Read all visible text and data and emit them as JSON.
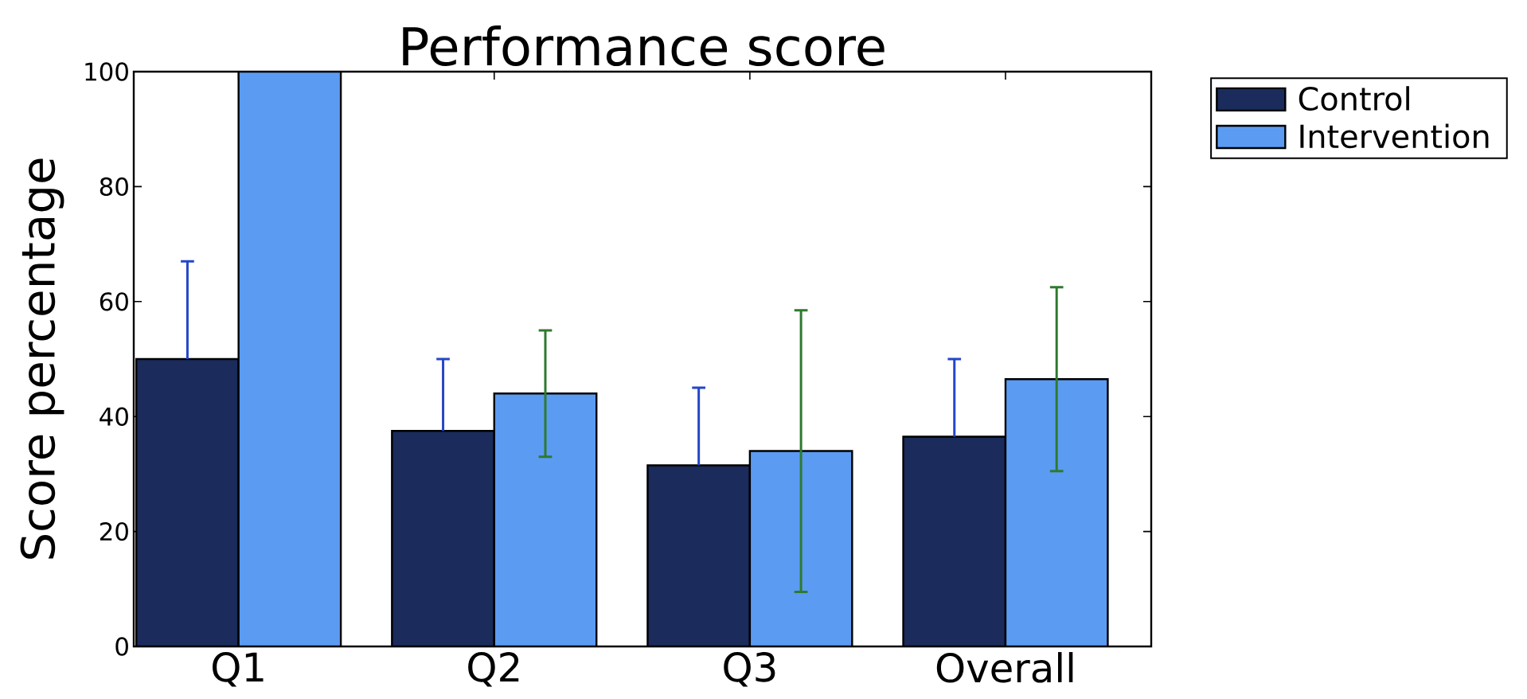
{
  "chart_data": {
    "type": "bar",
    "title": "Performance score",
    "ylabel": "Score percentage",
    "categories": [
      "Q1",
      "Q2",
      "Q3",
      "Overall"
    ],
    "series": [
      {
        "name": "Control",
        "color": "#1a2b5c",
        "values": [
          50,
          37.5,
          31.5,
          36.5
        ],
        "errors": [
          [
            50,
            67
          ],
          [
            37.5,
            50
          ],
          [
            31.5,
            45
          ],
          [
            36.5,
            50
          ]
        ]
      },
      {
        "name": "Intervention",
        "color": "#5b9bf2",
        "values": [
          100,
          44,
          34,
          46.5
        ],
        "errors": [
          null,
          11,
          24.5,
          16
        ]
      }
    ],
    "ylim": [
      0,
      100
    ],
    "yticks": [
      0,
      20,
      40,
      60,
      80,
      100
    ],
    "legend": "top right"
  }
}
